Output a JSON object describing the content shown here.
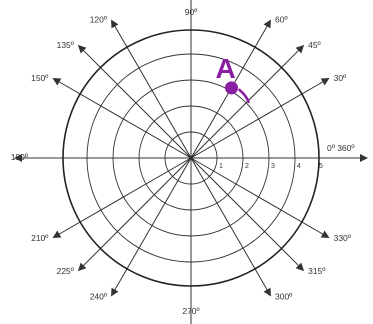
{
  "angles": [
    {
      "deg": 0,
      "label": "0º 360º"
    },
    {
      "deg": 30,
      "label": "30º"
    },
    {
      "deg": 45,
      "label": "45º"
    },
    {
      "deg": 60,
      "label": "60º"
    },
    {
      "deg": 90,
      "label": "90º"
    },
    {
      "deg": 120,
      "label": "120º"
    },
    {
      "deg": 135,
      "label": "135º"
    },
    {
      "deg": 150,
      "label": "150º"
    },
    {
      "deg": 180,
      "label": "180º"
    },
    {
      "deg": 210,
      "label": "210º"
    },
    {
      "deg": 225,
      "label": "225º"
    },
    {
      "deg": 240,
      "label": "240º"
    },
    {
      "deg": 270,
      "label": "270º"
    },
    {
      "deg": 300,
      "label": "300º"
    },
    {
      "deg": 315,
      "label": "315º"
    },
    {
      "deg": 330,
      "label": "330º"
    }
  ],
  "radii": [
    1,
    2,
    3,
    4,
    5
  ],
  "radius_labels": [
    "1",
    "2",
    "3",
    "4",
    "5"
  ],
  "point": {
    "label": "A",
    "r": 3,
    "theta_deg": 60,
    "color": "#8b1fa3"
  },
  "colors": {
    "grid": "#333333",
    "outer_circle": "#222222",
    "label": "#333333"
  }
}
